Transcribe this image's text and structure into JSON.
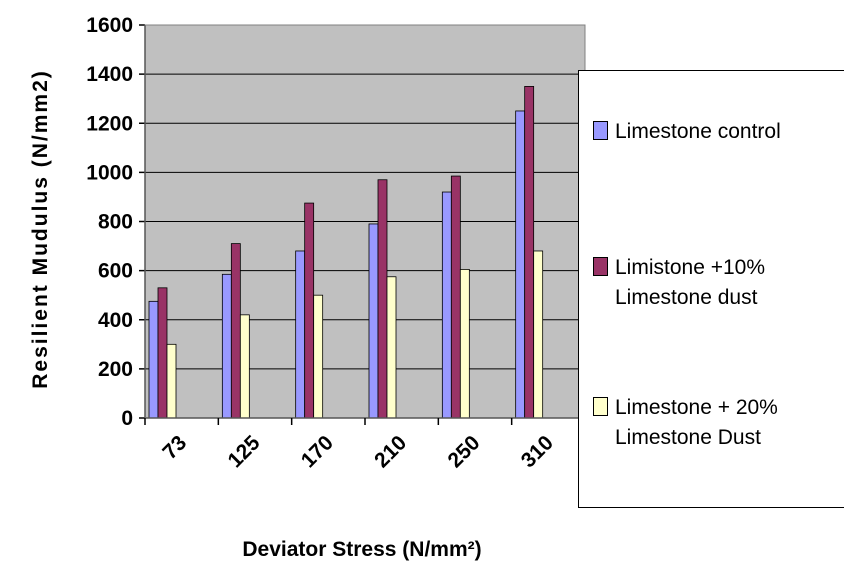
{
  "chart_data": {
    "type": "bar",
    "xlabel": "Deviator Stress (N/mm²)",
    "ylabel": "Resilient Mudulus (N/mm2)",
    "categories": [
      "73",
      "125",
      "170",
      "210",
      "250",
      "310"
    ],
    "ylim": [
      0,
      1600
    ],
    "yticks": [
      "0",
      "200",
      "400",
      "600",
      "800",
      "1000",
      "1200",
      "1400",
      "1600"
    ],
    "grid": true,
    "legend_position": "right",
    "plot_background": "#c0c0c0",
    "series": [
      {
        "name": "Limestone control",
        "color": "#9999ff",
        "values": [
          475,
          585,
          680,
          790,
          920,
          1250
        ]
      },
      {
        "name": "Limistone +10% Limestone dust",
        "color": "#993366",
        "values": [
          530,
          710,
          875,
          970,
          985,
          1350
        ]
      },
      {
        "name": "Limestone + 20% Limestone Dust",
        "color": "#ffffcc",
        "values": [
          300,
          420,
          500,
          575,
          605,
          680
        ]
      }
    ]
  }
}
